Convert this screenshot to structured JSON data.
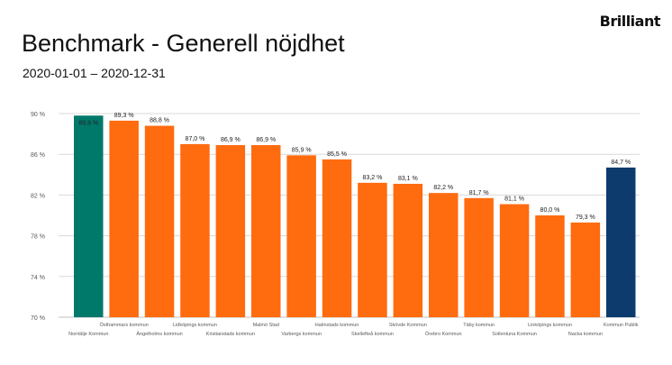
{
  "header": {
    "title": "Benchmark - Generell nöjdhet",
    "subtitle": "2020-01-01 – 2020-12-31",
    "brand": "Brilliant"
  },
  "colors": {
    "highlight": "#00796B",
    "default": "#FF6B0F",
    "reference": "#0D3B6E",
    "gridline": "#D9D9D9",
    "axis_text": "#595959",
    "label_text": "#222222"
  },
  "chart_data": {
    "type": "bar",
    "ylim": [
      70,
      90
    ],
    "yticks": [
      70,
      74,
      78,
      82,
      86,
      90
    ],
    "ytick_labels": [
      "70 %",
      "74 %",
      "78 %",
      "82 %",
      "86 %",
      "90 %"
    ],
    "grid": true,
    "xlabel": "",
    "ylabel": "",
    "categories": [
      "Norrtälje Kommun",
      "Östhammars kommun",
      "Ängelholms kommun",
      "Lidköpings kommun",
      "Kristianstads kommun",
      "Malmö Stad",
      "Varbergs kommun",
      "Halmstads kommun",
      "Skellefteå kommun",
      "Skövde Kommun",
      "Örebro Kommun",
      "Täby kommun",
      "Sollentuna Kommun",
      "Linköpings kommun",
      "Nacka kommun",
      "Kommun Publik"
    ],
    "values": [
      89.8,
      89.3,
      88.8,
      87.0,
      86.9,
      86.9,
      85.9,
      85.5,
      83.2,
      83.1,
      82.2,
      81.7,
      81.1,
      80.0,
      79.3,
      84.7
    ],
    "value_labels": [
      "89,8 %",
      "89,3 %",
      "88,8 %",
      "87,0 %",
      "86,9 %",
      "86,9 %",
      "85,9 %",
      "85,5 %",
      "83,2 %",
      "83,1 %",
      "82,2 %",
      "81,7 %",
      "81,1 %",
      "80,0 %",
      "79,3 %",
      "84,7 %"
    ],
    "bar_colors": [
      "highlight",
      "default",
      "default",
      "default",
      "default",
      "default",
      "default",
      "default",
      "default",
      "default",
      "default",
      "default",
      "default",
      "default",
      "default",
      "reference"
    ]
  }
}
